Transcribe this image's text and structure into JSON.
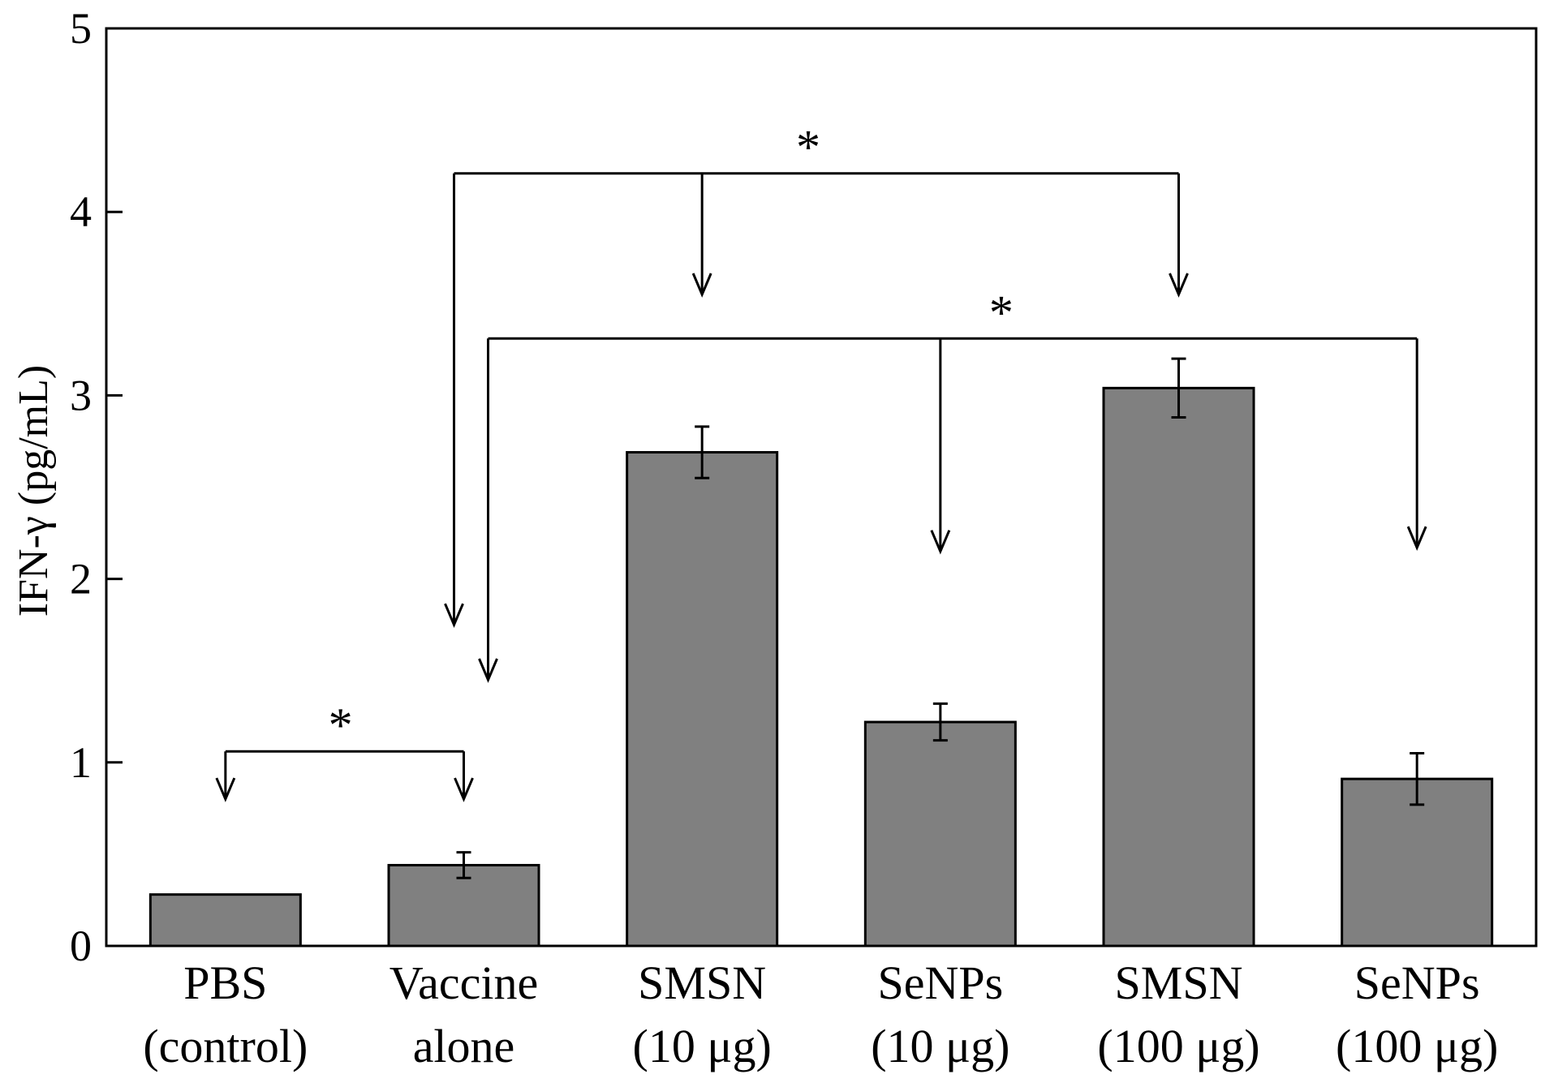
{
  "chart_data": {
    "type": "bar",
    "title": "",
    "xlabel": "",
    "ylabel": "IFN-γ (pg/mL)",
    "ylim": [
      0,
      5
    ],
    "yticks": [
      0,
      1,
      2,
      3,
      4,
      5
    ],
    "grid": false,
    "bar_color": "#808080",
    "categories": [
      [
        "PBS",
        "(control)"
      ],
      [
        "Vaccine",
        "alone"
      ],
      [
        "SMSN",
        "(10 μg)"
      ],
      [
        "SeNPs",
        "(10 μg)"
      ],
      [
        "SMSN",
        "(100 μg)"
      ],
      [
        "SeNPs",
        "(100 μg)"
      ]
    ],
    "values": [
      0.28,
      0.44,
      2.69,
      1.22,
      3.04,
      0.91
    ],
    "errors": [
      null,
      0.07,
      0.14,
      0.1,
      0.16,
      0.14
    ],
    "significance": [
      {
        "label": "*",
        "from": 0,
        "to": [
          1
        ],
        "y_bracket": 1.06
      },
      {
        "label": "*",
        "from": 1,
        "to": [
          2,
          4
        ],
        "y_bracket": 4.21
      },
      {
        "label": "*",
        "from": 1,
        "to": [
          3,
          5
        ],
        "y_bracket": 3.31
      }
    ]
  }
}
